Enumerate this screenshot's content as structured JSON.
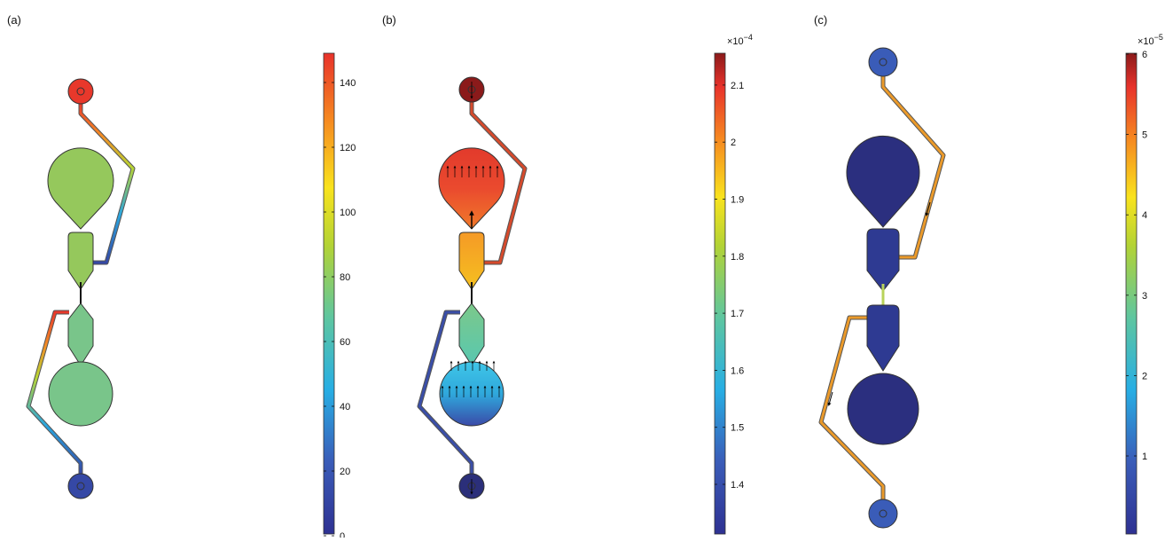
{
  "panels": [
    {
      "label": "(a)",
      "colorbar": {
        "multiplier": "",
        "exponent": "",
        "ticks": [
          "0",
          "20",
          "40",
          "60",
          "80",
          "100",
          "120",
          "140"
        ]
      },
      "colors": {
        "top_port": "#e8382b",
        "upper_chamber": "#95c85c",
        "upper_neck": "#95c85c",
        "lower_neck": "#79c58a",
        "lower_chamber": "#79c58a",
        "bottom_port": "#3548a5"
      }
    },
    {
      "label": "(b)",
      "colorbar": {
        "multiplier": "×10",
        "exponent": "−4",
        "ticks": [
          "1.4",
          "1.5",
          "1.6",
          "1.7",
          "1.8",
          "1.9",
          "2",
          "2.1"
        ]
      },
      "colors": {
        "top_port": "#8b1a1a",
        "upper_chamber": "#e8452e",
        "upper_neck": "#f5a623",
        "lower_neck": "#6cc79a",
        "lower_chamber": "#2fa8dc",
        "bottom_port": "#2b2f7a"
      }
    },
    {
      "label": "(c)",
      "colorbar": {
        "multiplier": "×10",
        "exponent": "−5",
        "ticks": [
          "1",
          "2",
          "3",
          "4",
          "5",
          "6"
        ]
      },
      "colors": {
        "top_port": "#3a5cb8",
        "upper_chamber": "#2b2f7f",
        "upper_neck": "#2e3a92",
        "lower_neck": "#2e3a92",
        "lower_chamber": "#2b2f7f",
        "bottom_port": "#3a5cb8"
      }
    }
  ]
}
